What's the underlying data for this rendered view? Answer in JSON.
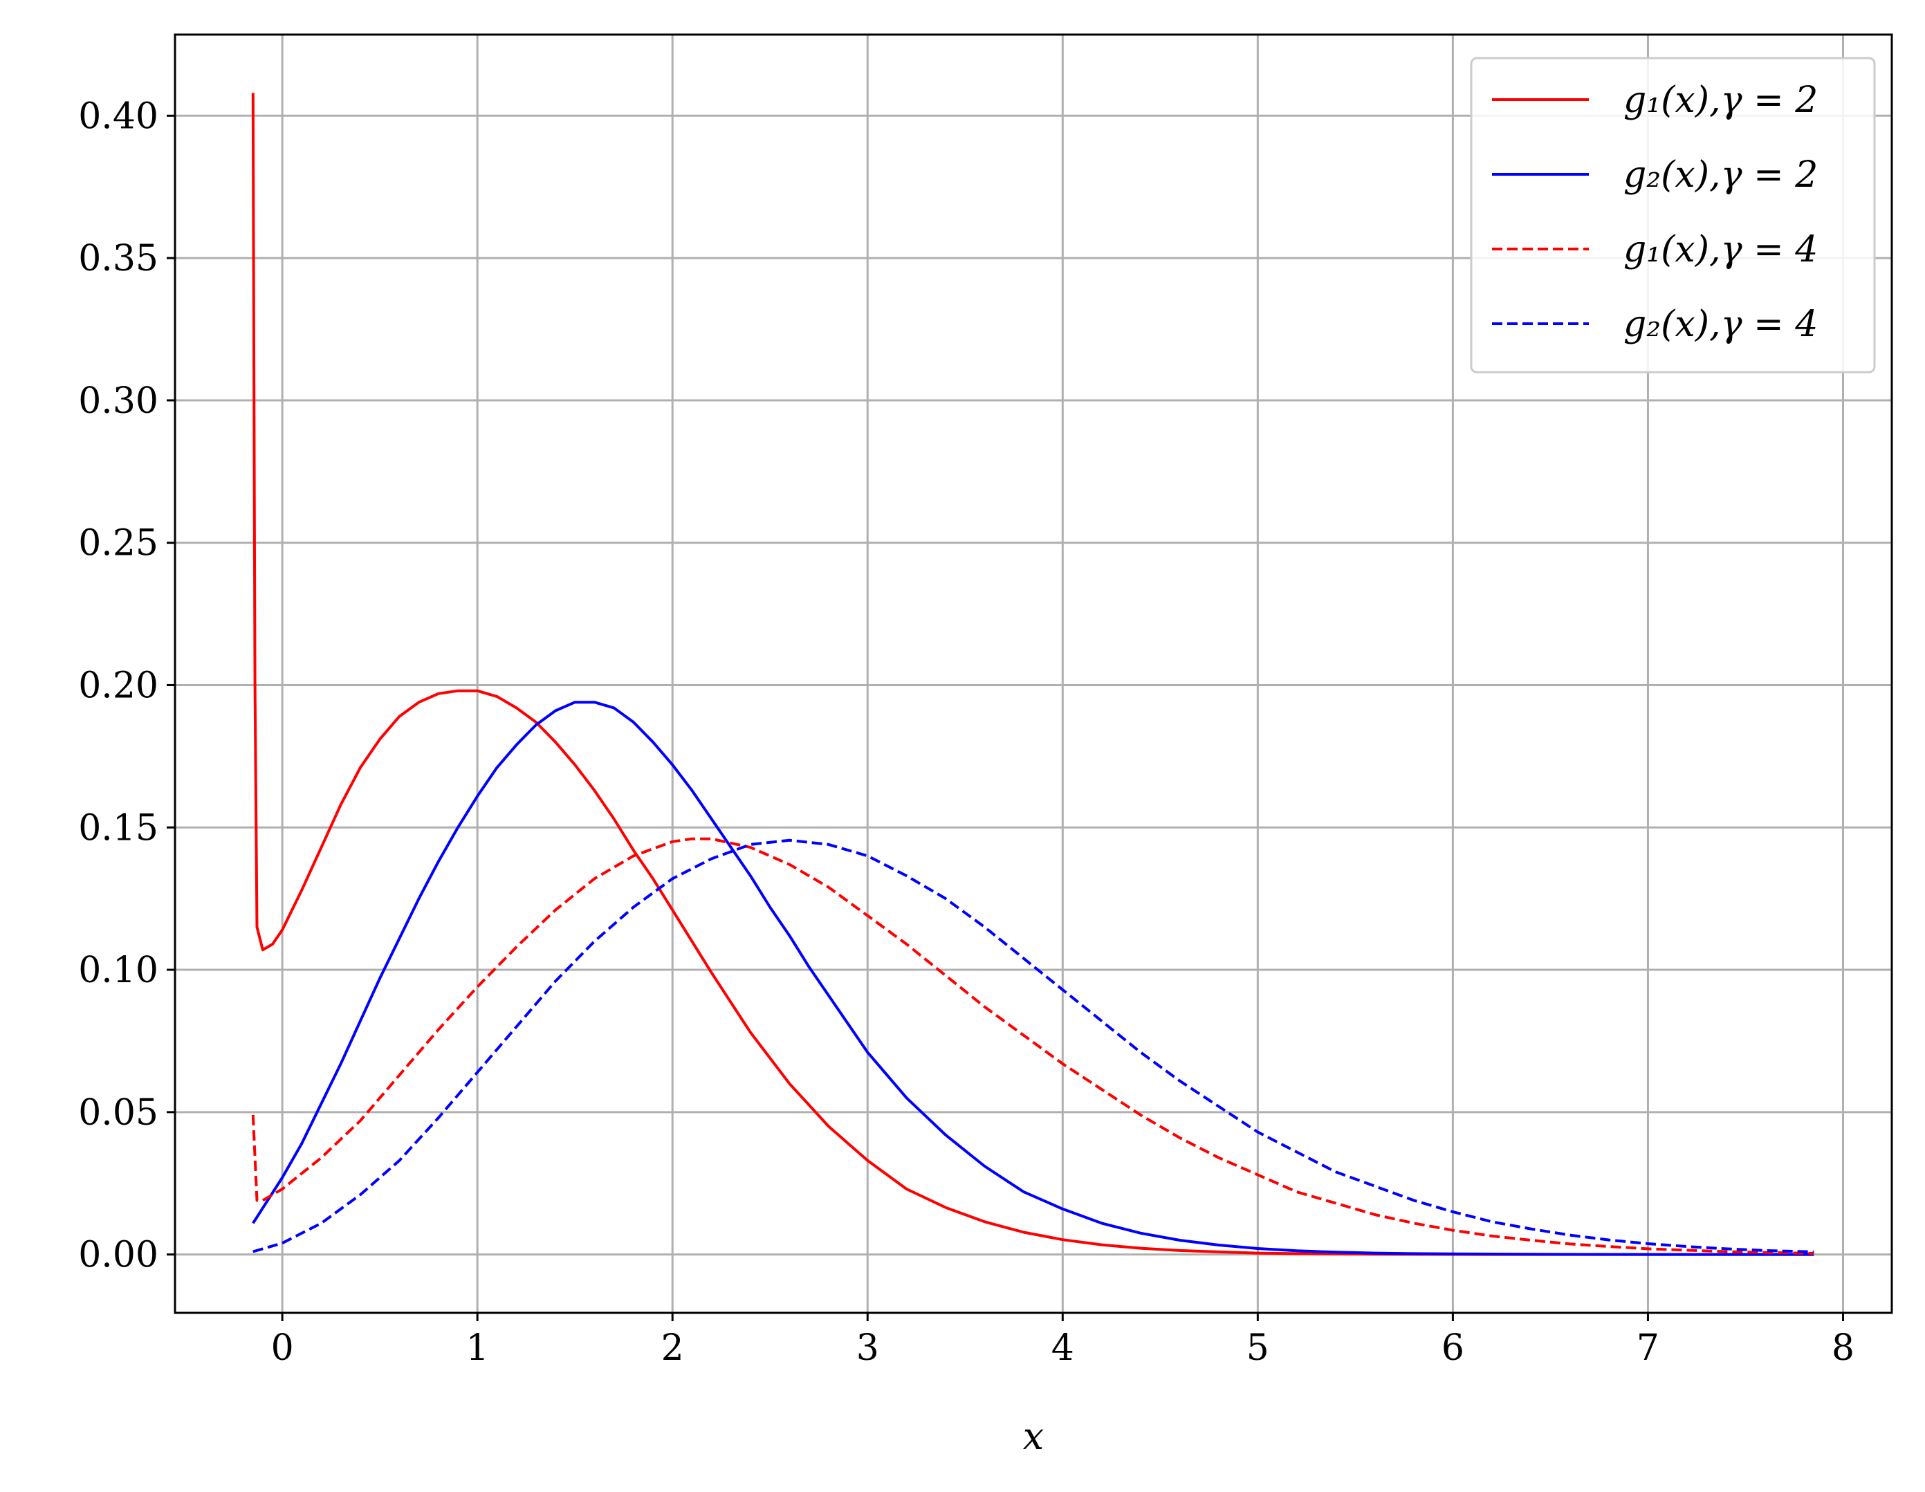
{
  "chart_data": {
    "type": "line",
    "title": "",
    "xlabel": "x",
    "ylabel": "",
    "xlim": [
      -0.55,
      8.25
    ],
    "ylim": [
      -0.0205,
      0.4285
    ],
    "xticks": [
      0,
      1,
      2,
      3,
      4,
      5,
      6,
      7,
      8
    ],
    "xtick_labels": [
      "0",
      "1",
      "2",
      "3",
      "4",
      "5",
      "6",
      "7",
      "8"
    ],
    "yticks": [
      0.0,
      0.05,
      0.1,
      0.15,
      0.2,
      0.25,
      0.3,
      0.35,
      0.4
    ],
    "ytick_labels": [
      "0.00",
      "0.05",
      "0.10",
      "0.15",
      "0.20",
      "0.25",
      "0.30",
      "0.35",
      "0.40"
    ],
    "grid": true,
    "legend_position": "top-right",
    "series": [
      {
        "name": "g₁(x),γ = 2",
        "color": "#ff0000",
        "dash": "solid",
        "x": [
          -0.15,
          -0.14,
          -0.13,
          -0.1,
          -0.05,
          0.0,
          0.1,
          0.2,
          0.3,
          0.4,
          0.5,
          0.6,
          0.7,
          0.8,
          0.9,
          1.0,
          1.1,
          1.2,
          1.3,
          1.4,
          1.5,
          1.6,
          1.7,
          1.8,
          1.9,
          2.0,
          2.2,
          2.4,
          2.6,
          2.8,
          3.0,
          3.2,
          3.4,
          3.6,
          3.8,
          4.0,
          4.2,
          4.4,
          4.6,
          4.8,
          5.0,
          5.2,
          5.4,
          5.6,
          5.8,
          6.0,
          6.2,
          6.4,
          6.6,
          6.8,
          7.0,
          7.2,
          7.4,
          7.6,
          7.85
        ],
        "y": [
          0.408,
          0.2,
          0.115,
          0.107,
          0.109,
          0.114,
          0.128,
          0.143,
          0.158,
          0.171,
          0.181,
          0.189,
          0.194,
          0.197,
          0.198,
          0.198,
          0.196,
          0.192,
          0.187,
          0.18,
          0.172,
          0.163,
          0.153,
          0.142,
          0.132,
          0.121,
          0.099,
          0.078,
          0.06,
          0.045,
          0.033,
          0.023,
          0.0165,
          0.0115,
          0.0078,
          0.0052,
          0.0034,
          0.0022,
          0.0014,
          0.0009,
          0.0005,
          0.0003,
          0.0002,
          0.0001,
          5e-05,
          3e-05,
          1e-05,
          0.0,
          0.0,
          0.0,
          0.0,
          0.0,
          0.0,
          0.0,
          0.0
        ]
      },
      {
        "name": "g₂(x),γ = 2",
        "color": "#0000ff",
        "dash": "solid",
        "x": [
          -0.15,
          0.0,
          0.1,
          0.2,
          0.3,
          0.4,
          0.5,
          0.6,
          0.7,
          0.8,
          0.9,
          1.0,
          1.1,
          1.2,
          1.3,
          1.4,
          1.5,
          1.6,
          1.7,
          1.8,
          1.9,
          2.0,
          2.1,
          2.2,
          2.3,
          2.4,
          2.5,
          2.6,
          2.7,
          2.8,
          2.9,
          3.0,
          3.2,
          3.4,
          3.6,
          3.8,
          4.0,
          4.2,
          4.4,
          4.6,
          4.8,
          5.0,
          5.2,
          5.4,
          5.6,
          5.8,
          6.0,
          6.5,
          7.0,
          7.5,
          7.85
        ],
        "y": [
          0.011,
          0.027,
          0.039,
          0.053,
          0.067,
          0.082,
          0.097,
          0.111,
          0.125,
          0.138,
          0.15,
          0.161,
          0.171,
          0.179,
          0.186,
          0.191,
          0.194,
          0.194,
          0.192,
          0.187,
          0.18,
          0.172,
          0.163,
          0.153,
          0.143,
          0.133,
          0.122,
          0.112,
          0.101,
          0.091,
          0.081,
          0.071,
          0.055,
          0.042,
          0.031,
          0.022,
          0.016,
          0.011,
          0.0075,
          0.005,
          0.0033,
          0.0021,
          0.0013,
          0.0008,
          0.0005,
          0.0003,
          0.0002,
          5e-05,
          1e-05,
          0.0,
          0.0
        ]
      },
      {
        "name": "g₁(x),γ = 4",
        "color": "#ff0000",
        "dash": "dashed",
        "x": [
          -0.15,
          -0.13,
          -0.1,
          0.0,
          0.2,
          0.4,
          0.6,
          0.8,
          1.0,
          1.2,
          1.4,
          1.6,
          1.8,
          2.0,
          2.1,
          2.2,
          2.4,
          2.6,
          2.8,
          3.0,
          3.2,
          3.4,
          3.6,
          3.8,
          4.0,
          4.2,
          4.4,
          4.6,
          4.8,
          5.0,
          5.2,
          5.4,
          5.6,
          5.8,
          6.0,
          6.2,
          6.4,
          6.6,
          6.8,
          7.0,
          7.2,
          7.4,
          7.6,
          7.85
        ],
        "y": [
          0.049,
          0.019,
          0.019,
          0.023,
          0.034,
          0.047,
          0.063,
          0.079,
          0.094,
          0.108,
          0.121,
          0.132,
          0.14,
          0.145,
          0.146,
          0.146,
          0.143,
          0.137,
          0.129,
          0.119,
          0.109,
          0.098,
          0.087,
          0.077,
          0.067,
          0.058,
          0.049,
          0.041,
          0.034,
          0.028,
          0.022,
          0.018,
          0.014,
          0.011,
          0.0085,
          0.0065,
          0.005,
          0.0037,
          0.0028,
          0.002,
          0.0015,
          0.001,
          0.0007,
          0.0004
        ]
      },
      {
        "name": "g₂(x),γ = 4",
        "color": "#0000ff",
        "dash": "dashed",
        "x": [
          -0.15,
          0.0,
          0.2,
          0.4,
          0.6,
          0.8,
          1.0,
          1.2,
          1.4,
          1.6,
          1.8,
          2.0,
          2.2,
          2.4,
          2.6,
          2.8,
          3.0,
          3.2,
          3.4,
          3.6,
          3.8,
          4.0,
          4.2,
          4.4,
          4.6,
          4.8,
          5.0,
          5.2,
          5.4,
          5.6,
          5.8,
          6.0,
          6.2,
          6.4,
          6.6,
          6.8,
          7.0,
          7.2,
          7.4,
          7.6,
          7.85
        ],
        "y": [
          0.001,
          0.004,
          0.011,
          0.021,
          0.033,
          0.048,
          0.064,
          0.08,
          0.096,
          0.11,
          0.122,
          0.132,
          0.139,
          0.144,
          0.1455,
          0.144,
          0.14,
          0.133,
          0.125,
          0.115,
          0.104,
          0.093,
          0.082,
          0.071,
          0.061,
          0.052,
          0.043,
          0.036,
          0.029,
          0.024,
          0.019,
          0.015,
          0.0115,
          0.009,
          0.0068,
          0.0051,
          0.0038,
          0.0028,
          0.002,
          0.0014,
          0.0009
        ]
      }
    ]
  }
}
